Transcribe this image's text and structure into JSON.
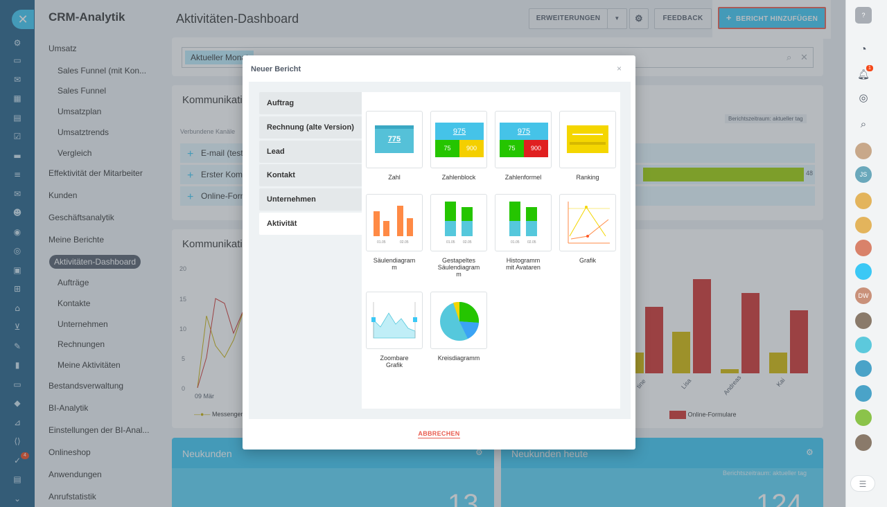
{
  "app_title": "CRM-Analytik",
  "page_title": "Aktivitäten-Dashboard",
  "header": {
    "extensions_label": "ERWEITERUNGEN",
    "feedback_label": "FEEDBACK",
    "add_report_label": "BERICHT HINZUFÜGEN"
  },
  "rail": {
    "notification_count": "4"
  },
  "menu": {
    "items": [
      {
        "label": "Umsatz"
      },
      {
        "label": "Sales Funnel (mit Kon..."
      },
      {
        "label": "Sales Funnel"
      },
      {
        "label": "Umsatzplan"
      },
      {
        "label": "Umsatztrends"
      },
      {
        "label": "Vergleich"
      },
      {
        "label": "Effektivität der Mitarbeiter"
      },
      {
        "label": "Kunden"
      },
      {
        "label": "Geschäftsanalytik"
      },
      {
        "label": "Meine Berichte"
      },
      {
        "label": "Aktivitäten-Dashboard"
      },
      {
        "label": "Aufträge"
      },
      {
        "label": "Kontakte"
      },
      {
        "label": "Unternehmen"
      },
      {
        "label": "Rechnungen"
      },
      {
        "label": "Meine Aktivitäten"
      },
      {
        "label": "Bestandsverwaltung"
      },
      {
        "label": "BI-Analytik"
      },
      {
        "label": "Einstellungen der BI-Anal..."
      },
      {
        "label": "Onlineshop"
      },
      {
        "label": "Anwendungen"
      },
      {
        "label": "Anrufstatistik"
      }
    ]
  },
  "filter": {
    "chip": "Aktueller Monat"
  },
  "widgets": {
    "comm1_title": "Kommunikatio",
    "channels_label": "Verbundene Kanäle",
    "period_label": "Berichtszeitraum: aktueller tag",
    "rows": [
      {
        "label": "E-mail (test"
      },
      {
        "label": "Erster Komm"
      },
      {
        "label": "Online-Form"
      }
    ],
    "bar_value": "48",
    "comm2_title": "Kommunikatio",
    "y_ticks": [
      "20",
      "15",
      "10",
      "5",
      "0"
    ],
    "x_first": "09 Mär",
    "legend_left": "Messenger",
    "legend_right": "Online-Formulare",
    "names": [
      "tine",
      "Lisa",
      "Andreas",
      "Kai"
    ],
    "new_customers": "Neukunden",
    "new_customers_today": "Neukunden heute",
    "new_customers_today_period": "Berichtszeitraum: aktueller tag",
    "new_customers_value": "13",
    "new_customers_today_value": "124"
  },
  "right_rail": {
    "notification_count": "1",
    "avatar_js": "JS",
    "avatar_dw": "DW"
  },
  "modal": {
    "title": "Neuer Bericht",
    "close": "×",
    "categories": [
      {
        "label": "Auftrag"
      },
      {
        "label": "Rechnung (alte Version)"
      },
      {
        "label": "Lead"
      },
      {
        "label": "Kontakt"
      },
      {
        "label": "Unternehmen"
      },
      {
        "label": "Aktivität"
      }
    ],
    "selected_category": "Aktivität",
    "cards": [
      {
        "label": "Zahl",
        "value": "775"
      },
      {
        "label": "Zahlenblock",
        "value": "975",
        "v2": "75",
        "v3": "900"
      },
      {
        "label": "Zahlenformel",
        "value": "975",
        "v2": "75",
        "v3": "900"
      },
      {
        "label": "Ranking"
      },
      {
        "label": "Säulendiagram\nm",
        "x1": "01.05",
        "x2": "02.05"
      },
      {
        "label": "Gestapeltes\nSäulendiagram\nm",
        "x1": "01.05",
        "x2": "02.05"
      },
      {
        "label": "Histogramm\nmit Avataren",
        "x1": "01.05",
        "x2": "02.05"
      },
      {
        "label": "Grafik"
      },
      {
        "label": "Zoombare\nGrafik"
      },
      {
        "label": "Kreisdiagramm"
      }
    ],
    "cancel_label": "ABBRECHEN"
  },
  "colors": {
    "accent": "#3bc8f5",
    "highlight": "#e85c4f",
    "rail": "#1f5d86"
  }
}
